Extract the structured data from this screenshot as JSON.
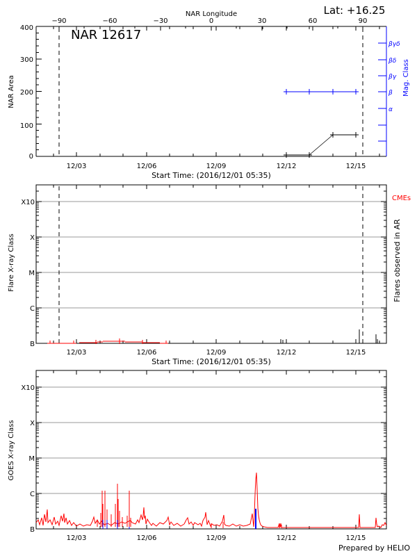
{
  "header": {
    "top_axis_title": "NAR Longitude",
    "latitude": "Lat: +16.25",
    "region_title": "NAR 12617"
  },
  "footer": {
    "prepared_by": "Prepared by HELIO"
  },
  "colors": {
    "black": "#000000",
    "red": "#ff0000",
    "blue": "#0000ff",
    "grid": "#999999"
  },
  "chart_data": [
    {
      "type": "line",
      "title": "NAR 12617",
      "xlabel": "Start Time: (2016/12/01 05:35)",
      "ylabel": "NAR Area",
      "right_ylabel": "Mag. Class",
      "top_xlabel": "NAR Longitude",
      "top_ticks": [
        "-90",
        "-60",
        "-30",
        "0",
        "30",
        "60",
        "90"
      ],
      "x_ticks": [
        "12/03",
        "12/06",
        "12/09",
        "12/12",
        "12/15"
      ],
      "y_ticks": [
        "0",
        "100",
        "200",
        "300",
        "400"
      ],
      "ylim": [
        0,
        400
      ],
      "right_ticks": [
        "α",
        "β",
        "βγ",
        "βδ",
        "βγδ"
      ],
      "limb_markers_longitude": [
        -90,
        90
      ],
      "series": [
        {
          "name": "NAR Area",
          "color": "#000000",
          "x": [
            "12/12",
            "12/13",
            "12/14",
            "12/15"
          ],
          "values": [
            5,
            5,
            70,
            70
          ]
        },
        {
          "name": "Mag. Class",
          "color": "#0000ff",
          "x": [
            "12/12",
            "12/13",
            "12/14",
            "12/15"
          ],
          "values": [
            "β",
            "β",
            "β",
            "β"
          ]
        }
      ]
    },
    {
      "type": "bar",
      "title": "",
      "xlabel": "Start Time: (2016/12/01 05:35)",
      "ylabel": "Flare X-ray Class",
      "right_ylabel": "Flares observed in AR",
      "legend": [
        "CMEs"
      ],
      "x_ticks": [
        "12/03",
        "12/06",
        "12/09",
        "12/12",
        "12/15"
      ],
      "y_ticks": [
        "B",
        "C",
        "M",
        "X",
        "X10"
      ],
      "grid": true,
      "series": [
        {
          "name": "CMEs",
          "color": "#ff0000",
          "x": [
            "12/02",
            "12/03",
            "12/04",
            "12/05",
            "12/06",
            "12/07"
          ],
          "values": [
            "B",
            "B",
            "B1",
            "B2",
            "B1",
            "B"
          ]
        },
        {
          "name": "Flares observed in AR",
          "color": "#000000",
          "x": [
            "12/11.9",
            "12/15.1",
            "12/15.9"
          ],
          "values": [
            "B1",
            "B4",
            "B3"
          ]
        }
      ]
    },
    {
      "type": "line",
      "title": "",
      "xlabel": "",
      "ylabel": "GOES X-ray Class",
      "x_ticks": [
        "12/03",
        "12/06",
        "12/09",
        "12/12",
        "12/15"
      ],
      "y_ticks": [
        "B",
        "C",
        "M",
        "X",
        "X10"
      ],
      "grid": true,
      "series": [
        {
          "name": "GOES long channel",
          "color": "#ff0000",
          "x": [
            "12/01",
            "12/02",
            "12/03",
            "12/04",
            "12/04.3",
            "12/04.5",
            "12/05",
            "12/05.5",
            "12/06",
            "12/07",
            "12/08",
            "12/09",
            "12/10",
            "12/10.9",
            "12/11.5",
            "12/12",
            "12/15",
            "12/16"
          ],
          "values": [
            "B2",
            "B2",
            "B1",
            "B2",
            "C1",
            "C1",
            "C3",
            "C1",
            "B2",
            "B4",
            "B1",
            "B2",
            "B1",
            "C6",
            "B1",
            "B",
            "B4",
            "B3"
          ]
        },
        {
          "name": "Flare markers",
          "color": "#0000ff",
          "x": [
            "12/04.3",
            "12/04.5",
            "12/05",
            "12/05.5",
            "12/10.9"
          ],
          "values": [
            "B2",
            "B2",
            "B2",
            "B",
            "B6"
          ]
        }
      ]
    }
  ],
  "panel1": {
    "ylabel": "NAR Area",
    "right_ylabel": "Mag. Class",
    "y_ticks": [
      "0",
      "100",
      "200",
      "300",
      "400"
    ],
    "top_ticks": [
      "−90",
      "−60",
      "−30",
      "0",
      "30",
      "60",
      "90"
    ],
    "mag_ticks": [
      "βγδ",
      "βδ",
      "βγ",
      "β",
      "α"
    ],
    "x_ticks": [
      "12/03",
      "12/06",
      "12/09",
      "12/12",
      "12/15"
    ],
    "start_time": "Start Time: (2016/12/01 05:35)"
  },
  "panel2": {
    "ylabel": "Flare X-ray Class",
    "right_ylabel": "Flares observed in AR",
    "cme_label": "CMEs",
    "y_ticks": [
      "X10",
      "X",
      "M",
      "C",
      "B"
    ],
    "x_ticks": [
      "12/03",
      "12/06",
      "12/09",
      "12/12",
      "12/15"
    ],
    "start_time": "Start Time: (2016/12/01 05:35)"
  },
  "panel3": {
    "ylabel": "GOES X-ray Class",
    "y_ticks": [
      "X10",
      "X",
      "M",
      "C",
      "B"
    ],
    "x_ticks": [
      "12/03",
      "12/06",
      "12/09",
      "12/12",
      "12/15"
    ]
  }
}
